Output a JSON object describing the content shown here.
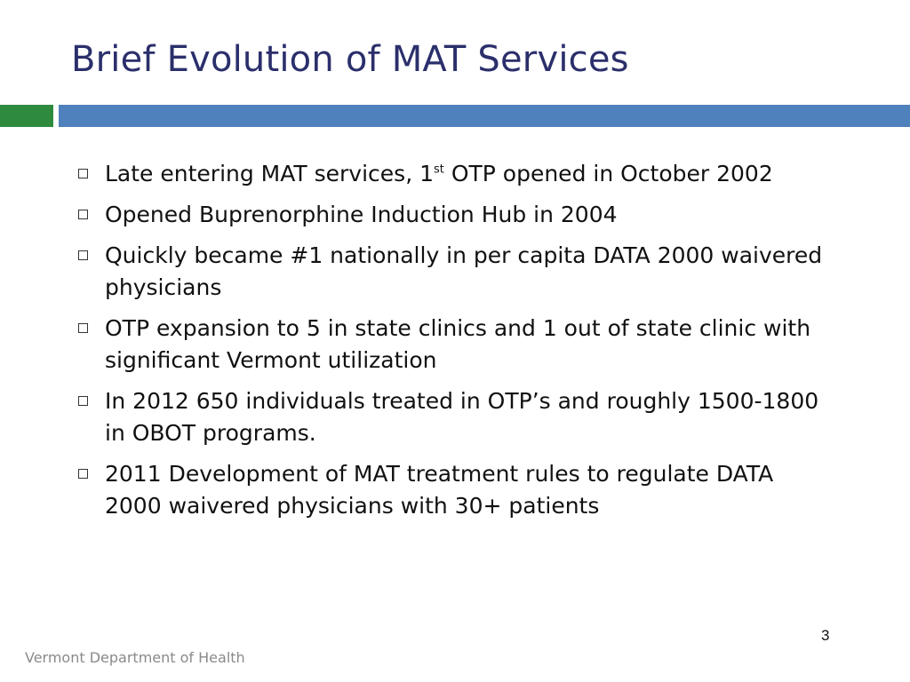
{
  "slide": {
    "title": "Brief Evolution of MAT Services",
    "bullets": [
      {
        "text_before": "Late entering MAT services, 1",
        "superscript": "st",
        "text_after": " OTP opened in October 2002"
      },
      {
        "text": "Opened Buprenorphine Induction Hub in 2004"
      },
      {
        "text": "Quickly became #1 nationally in per capita DATA 2000 waivered physicians"
      },
      {
        "text": "OTP expansion to 5 in state clinics and 1 out of state clinic with significant Vermont utilization"
      },
      {
        "text": "In 2012 650 individuals treated in OTP’s and roughly 1500-1800 in OBOT programs."
      },
      {
        "text": "2011 Development of MAT treatment rules to regulate DATA 2000 waivered physicians with 30+ patients"
      }
    ],
    "page_number": "3",
    "footer": "Vermont Department of Health"
  },
  "colors": {
    "title": "#2b2f6b",
    "accent_green": "#2e8b3e",
    "accent_blue": "#4f81bd",
    "footer_text": "#8a8a8a"
  },
  "icons": {
    "bullet": "hollow-square-bullet-icon"
  }
}
